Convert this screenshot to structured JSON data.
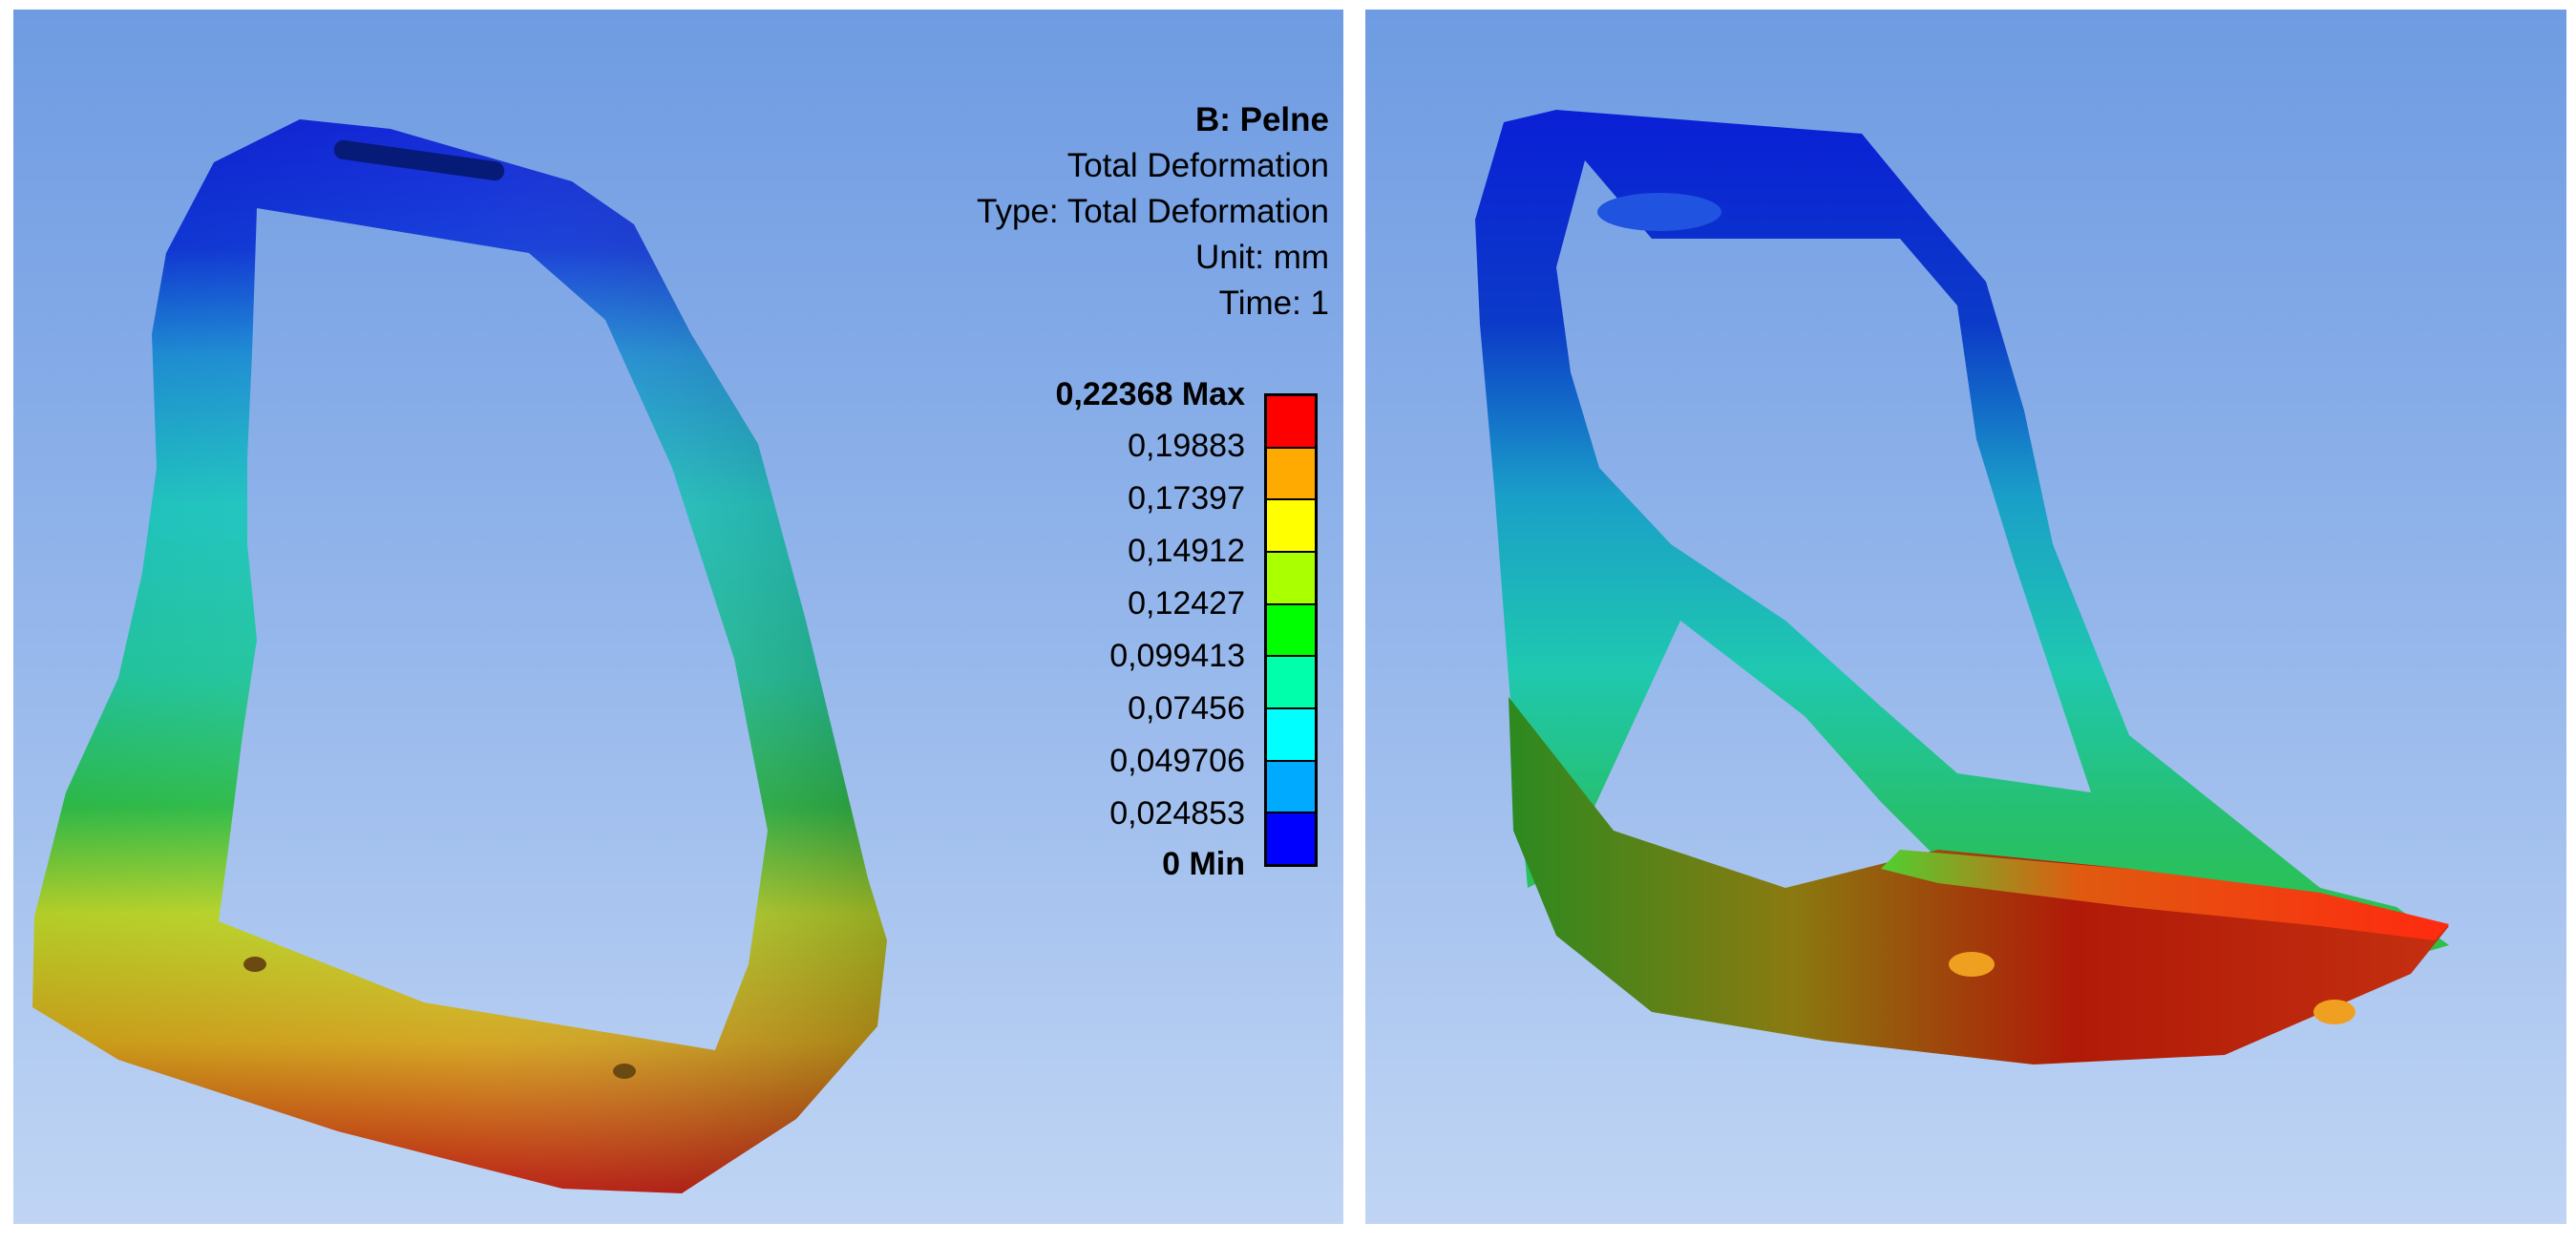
{
  "legend": {
    "title": "B: Pelne",
    "result": "Total Deformation",
    "type": "Type: Total Deformation",
    "unit": "Unit: mm",
    "time": "Time: 1",
    "ticks": [
      "0,22368 Max",
      "0,19883",
      "0,17397",
      "0,14912",
      "0,12427",
      "0,099413",
      "0,07456",
      "0,049706",
      "0,024853",
      "0 Min"
    ],
    "colors": [
      "#000000",
      "#ff0000",
      "#ffaa00",
      "#ffff00",
      "#aaff00",
      "#00ff00",
      "#00ffaa",
      "#00ffff",
      "#00aaff",
      "#0000ff"
    ]
  },
  "views": [
    {
      "name": "front-view",
      "description_icon": "stirrup-model"
    },
    {
      "name": "angled-view",
      "description_icon": "stirrup-model"
    }
  ]
}
